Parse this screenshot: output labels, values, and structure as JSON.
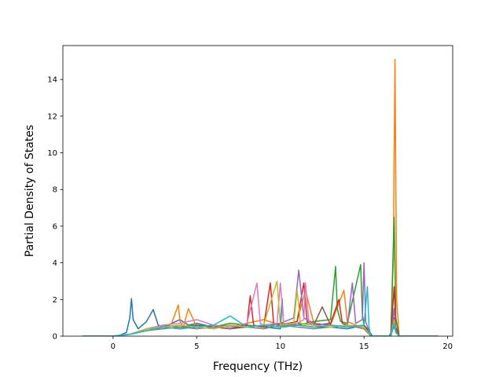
{
  "chart_data": {
    "type": "line",
    "title": "",
    "xlabel": "Frequency (THz)",
    "ylabel": "Partial Density of States",
    "xlim": [
      -3.0,
      20.3
    ],
    "ylim": [
      0,
      15.85
    ],
    "xticks": [
      0,
      5,
      10,
      15,
      20
    ],
    "yticks": [
      0,
      2,
      4,
      6,
      8,
      10,
      12,
      14
    ],
    "grid": false,
    "legend": "none",
    "series": [
      {
        "color": "#1f77b4",
        "x": [
          -1.8,
          0.0,
          0.4,
          0.8,
          1.0,
          1.1,
          1.2,
          1.5,
          2.0,
          2.4,
          2.7,
          3.0,
          3.5,
          4.0,
          4.5,
          5.0,
          6.0,
          7.0,
          8.0,
          9.0,
          10.0,
          10.1,
          10.2,
          11.0,
          12.0,
          13.0,
          14.0,
          15.0,
          15.3,
          15.5,
          16.5,
          16.8,
          16.9,
          17.1,
          19.4
        ],
        "y": [
          0,
          0,
          0.05,
          0.2,
          1.0,
          2.05,
          0.9,
          0.4,
          0.8,
          1.45,
          0.6,
          0.5,
          0.7,
          0.9,
          0.6,
          0.7,
          0.5,
          0.4,
          0.6,
          0.5,
          0.4,
          2.05,
          0.5,
          0.6,
          0.5,
          0.5,
          0.4,
          0.6,
          0.3,
          0,
          0,
          0.5,
          0.3,
          0,
          0
        ]
      },
      {
        "color": "#ff7f0e",
        "x": [
          -1.8,
          0.0,
          1.0,
          2.0,
          3.0,
          3.5,
          3.9,
          4.0,
          4.2,
          4.5,
          5.0,
          6.0,
          7.0,
          8.0,
          9.0,
          10.0,
          11.0,
          11.5,
          12.0,
          13.0,
          13.8,
          14.0,
          14.5,
          15.0,
          15.4,
          16.6,
          16.75,
          16.85,
          16.95,
          17.1,
          19.4
        ],
        "y": [
          0,
          0,
          0.1,
          0.3,
          0.5,
          0.7,
          1.7,
          0.8,
          0.5,
          1.5,
          0.5,
          0.6,
          0.5,
          0.7,
          0.9,
          0.6,
          0.8,
          2.5,
          0.7,
          0.6,
          2.5,
          0.8,
          0.6,
          0.5,
          0,
          0,
          4.0,
          15.1,
          2.0,
          0,
          0
        ]
      },
      {
        "color": "#2ca02c",
        "x": [
          -1.8,
          0.0,
          1.0,
          2.0,
          3.0,
          4.0,
          5.0,
          6.0,
          7.0,
          8.0,
          9.0,
          10.0,
          11.0,
          12.0,
          13.0,
          13.3,
          13.4,
          13.6,
          14.0,
          14.8,
          14.9,
          15.0,
          15.4,
          16.6,
          16.8,
          16.9,
          17.1,
          19.4
        ],
        "y": [
          0,
          0,
          0.1,
          0.4,
          0.6,
          0.5,
          0.6,
          0.5,
          0.7,
          0.6,
          0.5,
          0.7,
          0.6,
          0.8,
          0.9,
          3.8,
          1.5,
          0.8,
          0.7,
          3.9,
          1.2,
          0.6,
          0,
          0,
          6.5,
          1.0,
          0,
          0
        ]
      },
      {
        "color": "#d62728",
        "x": [
          -1.8,
          0.0,
          1.0,
          2.0,
          3.0,
          4.0,
          5.0,
          6.0,
          7.0,
          8.0,
          8.2,
          8.4,
          9.0,
          9.4,
          9.6,
          10.0,
          11.0,
          11.4,
          11.6,
          12.0,
          13.0,
          13.5,
          13.7,
          14.0,
          15.0,
          15.4,
          16.6,
          16.8,
          16.9,
          17.1,
          19.4
        ],
        "y": [
          0,
          0,
          0.1,
          0.3,
          0.5,
          0.4,
          0.5,
          0.6,
          0.5,
          0.6,
          2.2,
          0.6,
          0.5,
          2.9,
          0.7,
          0.6,
          0.8,
          2.9,
          0.8,
          0.6,
          0.7,
          2.0,
          0.7,
          0.6,
          0.5,
          0,
          0,
          2.7,
          0.5,
          0,
          0
        ]
      },
      {
        "color": "#9467bd",
        "x": [
          -1.8,
          0.0,
          1.0,
          2.0,
          3.0,
          4.0,
          5.0,
          6.0,
          7.0,
          8.0,
          9.0,
          10.0,
          10.8,
          11.1,
          11.4,
          12.0,
          13.0,
          14.0,
          14.3,
          14.5,
          14.9,
          15.0,
          15.1,
          15.4,
          16.6,
          16.8,
          16.9,
          17.1,
          19.4
        ],
        "y": [
          0,
          0,
          0.1,
          0.4,
          0.5,
          0.6,
          0.5,
          0.4,
          0.6,
          0.5,
          0.6,
          0.7,
          1.0,
          3.6,
          1.0,
          0.7,
          0.6,
          0.5,
          2.9,
          0.7,
          0.9,
          4.0,
          0.8,
          0,
          0,
          1.5,
          0.3,
          0,
          0
        ]
      },
      {
        "color": "#8c564b",
        "x": [
          -1.8,
          0.0,
          1.0,
          2.0,
          3.0,
          4.0,
          5.0,
          6.0,
          7.0,
          8.0,
          9.0,
          10.0,
          11.0,
          12.0,
          12.5,
          13.0,
          14.0,
          15.0,
          15.4,
          16.6,
          16.8,
          16.9,
          17.1,
          19.4
        ],
        "y": [
          0,
          0,
          0.1,
          0.3,
          0.5,
          0.4,
          0.6,
          0.5,
          0.4,
          0.5,
          0.6,
          0.5,
          0.7,
          0.6,
          1.6,
          0.6,
          0.5,
          0.6,
          0,
          0,
          1.0,
          0.2,
          0,
          0
        ]
      },
      {
        "color": "#e377c2",
        "x": [
          -1.8,
          0.0,
          1.0,
          2.0,
          3.0,
          4.0,
          5.0,
          6.0,
          7.0,
          8.0,
          8.6,
          8.8,
          9.0,
          9.8,
          10.0,
          10.2,
          11.0,
          11.4,
          11.5,
          11.7,
          12.0,
          13.0,
          14.0,
          15.0,
          15.4,
          16.6,
          16.8,
          16.9,
          17.1,
          19.4
        ],
        "y": [
          0,
          0,
          0.1,
          0.4,
          0.6,
          0.7,
          0.9,
          0.6,
          0.5,
          0.7,
          2.9,
          0.7,
          0.6,
          0.7,
          2.9,
          0.6,
          0.7,
          0.9,
          2.9,
          0.8,
          0.6,
          0.5,
          0.6,
          0.4,
          0,
          0,
          0.8,
          0.2,
          0,
          0
        ]
      },
      {
        "color": "#7f7f7f",
        "x": [
          -1.8,
          0.0,
          1.0,
          2.0,
          3.0,
          4.0,
          5.0,
          6.0,
          7.0,
          8.0,
          9.0,
          10.0,
          11.0,
          12.0,
          13.0,
          14.0,
          15.0,
          15.4,
          16.6,
          16.8,
          16.9,
          17.1,
          19.4
        ],
        "y": [
          0,
          0,
          0.1,
          0.3,
          0.4,
          0.5,
          0.4,
          0.5,
          0.6,
          0.5,
          0.4,
          0.6,
          0.5,
          0.4,
          0.5,
          0.6,
          0.4,
          0,
          0,
          0.6,
          0.2,
          0,
          0
        ]
      },
      {
        "color": "#bcbd22",
        "x": [
          -1.8,
          0.0,
          1.0,
          2.0,
          3.0,
          4.0,
          5.0,
          6.0,
          7.0,
          8.0,
          9.0,
          9.8,
          10.0,
          10.8,
          11.0,
          11.2,
          12.0,
          13.0,
          14.0,
          15.0,
          15.4,
          16.6,
          16.8,
          16.9,
          17.1,
          19.4
        ],
        "y": [
          0,
          0,
          0.1,
          0.4,
          0.5,
          0.6,
          0.5,
          0.4,
          0.6,
          0.5,
          0.6,
          3.0,
          0.6,
          0.7,
          2.5,
          0.7,
          0.6,
          0.5,
          0.6,
          0.5,
          0,
          0,
          0.9,
          0.2,
          0,
          0
        ]
      },
      {
        "color": "#17becf",
        "x": [
          -1.8,
          0.0,
          1.0,
          2.0,
          3.0,
          4.0,
          5.0,
          6.0,
          7.0,
          8.0,
          9.0,
          10.0,
          11.0,
          12.0,
          13.0,
          14.0,
          15.0,
          15.2,
          15.3,
          15.4,
          16.6,
          16.8,
          16.9,
          17.1,
          19.4
        ],
        "y": [
          0,
          0,
          0.1,
          0.3,
          0.5,
          0.4,
          0.5,
          0.6,
          1.1,
          0.5,
          0.6,
          0.5,
          0.6,
          0.5,
          0.6,
          0.5,
          0.6,
          2.7,
          0.5,
          0,
          0,
          0.7,
          0.2,
          0,
          0
        ]
      }
    ]
  }
}
